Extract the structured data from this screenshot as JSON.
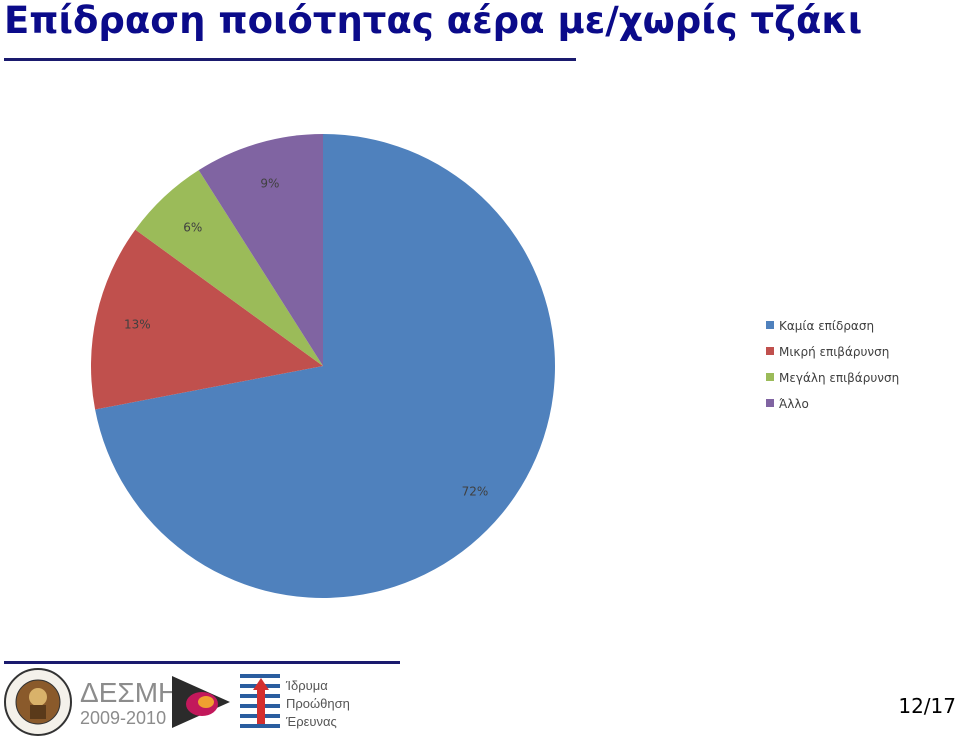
{
  "slide": {
    "title": "Επίδραση ποιότητας αέρα με/χωρίς τζάκι",
    "page_number": "12/17"
  },
  "colors": {
    "title": "#0b0b8a",
    "rules": "#1a1a6e"
  },
  "chart_data": {
    "type": "pie",
    "title": "",
    "slices": [
      {
        "label": "Καμία επίδραση",
        "value": 72,
        "display": "72%",
        "color": "#4f81bd"
      },
      {
        "label": "Μικρή επιβάρυνση",
        "value": 13,
        "display": "13%",
        "color": "#c0504d"
      },
      {
        "label": "Μεγάλη επιβάρυνση",
        "value": 6,
        "display": "6%",
        "color": "#9bbb59"
      },
      {
        "label": "Άλλο",
        "value": 9,
        "display": "9%",
        "color": "#8064a2"
      }
    ],
    "start_angle": "12 o'clock",
    "direction": "clockwise",
    "legend_position": "right"
  },
  "footer": {
    "logos": [
      {
        "name": "university-seal-logo",
        "text": "ΤΕΧΝΟΛΟΓΙΚΟ ΠΑΝΕΠΙΣΤΗΜΙΟ ΚΥΠΡΟΥ 2004"
      },
      {
        "name": "desmi-logo",
        "text": "ΔΕΣΜΗ 2009-2010"
      },
      {
        "name": "research-foundation-logo",
        "text": "Ίδρυμα Προώθησης Έρευνας"
      }
    ]
  }
}
